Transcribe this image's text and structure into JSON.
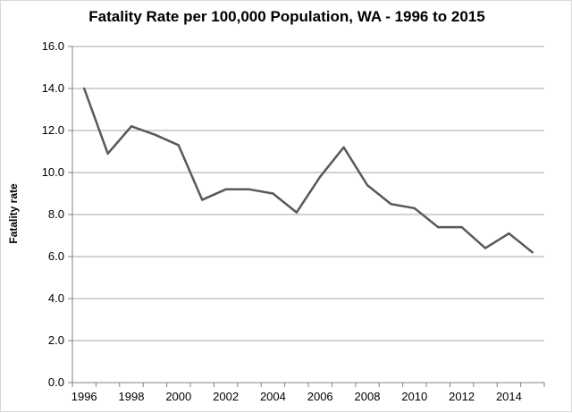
{
  "chart_data": {
    "type": "line",
    "title": "Fatality Rate per 100,000  Population, WA - 1996 to 2015",
    "xlabel": "",
    "ylabel": "Fatality rate",
    "x": [
      1996,
      1997,
      1998,
      1999,
      2000,
      2001,
      2002,
      2003,
      2004,
      2005,
      2006,
      2007,
      2008,
      2009,
      2010,
      2011,
      2012,
      2013,
      2014,
      2015
    ],
    "series": [
      {
        "values": [
          14.0,
          10.9,
          12.2,
          11.8,
          11.3,
          8.7,
          9.2,
          9.2,
          9.0,
          8.1,
          9.8,
          11.2,
          9.4,
          8.5,
          8.3,
          7.4,
          7.4,
          6.4,
          7.1,
          6.2
        ],
        "color": "#595959"
      }
    ],
    "ylim": [
      0,
      16
    ],
    "yticks": [
      "0.0",
      "2.0",
      "4.0",
      "6.0",
      "8.0",
      "10.0",
      "12.0",
      "14.0",
      "16.0"
    ],
    "xtick_labels": [
      "1996",
      "1998",
      "2000",
      "2002",
      "2004",
      "2006",
      "2008",
      "2010",
      "2012",
      "2014"
    ],
    "grid": true,
    "legend": "none"
  }
}
